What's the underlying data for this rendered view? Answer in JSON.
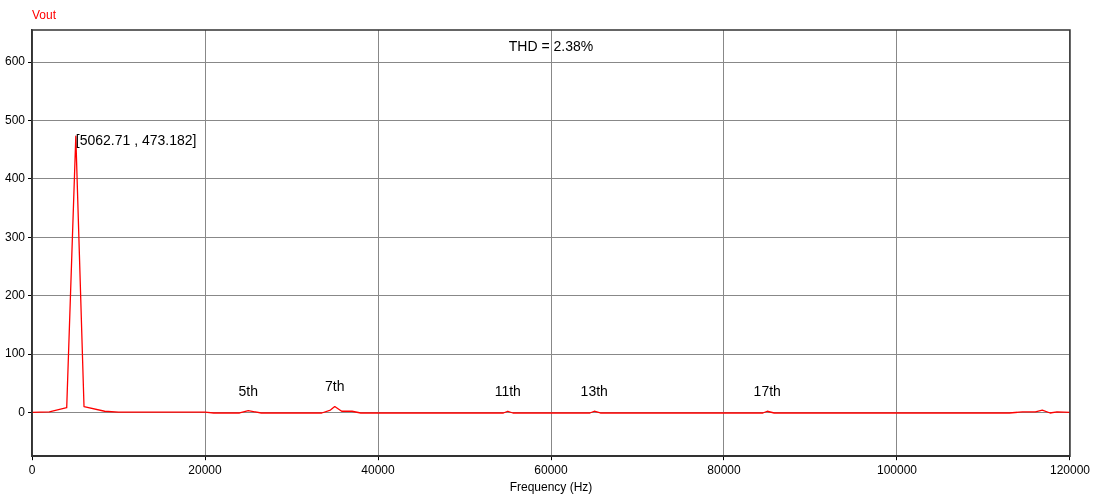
{
  "chart_data": {
    "type": "line",
    "xlabel": "Frequency (Hz)",
    "ylabel": "Vout",
    "x": [
      0,
      2000,
      4010,
      5062.71,
      6010,
      8400,
      10000,
      20000,
      21000,
      24000,
      25000,
      26500,
      33500,
      34500,
      35000,
      35800,
      37000,
      38000,
      54500,
      55000,
      55600,
      64500,
      65000,
      65700,
      84500,
      85000,
      85800,
      113000,
      114500,
      116000,
      116800,
      117700,
      118500,
      120000
    ],
    "series": [
      {
        "color": "#ff0000",
        "values": [
          0,
          1,
          8,
          473.182,
          10,
          2,
          0.5,
          0.5,
          -1,
          -1,
          3,
          -1,
          -1,
          4,
          10,
          2,
          2,
          -1,
          -1,
          2,
          -1,
          -1,
          2,
          -1,
          -1,
          2,
          -1,
          -1,
          1,
          1,
          4,
          -1,
          1,
          0
        ]
      }
    ],
    "xlim": [
      0,
      120000
    ],
    "xticks": [
      0,
      20000,
      40000,
      60000,
      80000,
      100000,
      120000
    ],
    "ylim": [
      -75,
      655
    ],
    "yticks": [
      0,
      100,
      200,
      300,
      400,
      500,
      600
    ],
    "grid": true,
    "legend": false,
    "marker": "none",
    "line_style": "solid",
    "annotations": [
      "THD = 2.38%",
      {
        "text": "[5062.71 , 473.182]",
        "x": 5062.71,
        "y": 473.182
      },
      {
        "text": "5th",
        "x": 25000,
        "y": 3
      },
      {
        "text": "7th",
        "x": 35000,
        "y": 10
      },
      {
        "text": "11th",
        "x": 55000,
        "y": 2
      },
      {
        "text": "13th",
        "x": 65000,
        "y": 2
      },
      {
        "text": "17th",
        "x": 85000,
        "y": 2
      }
    ]
  }
}
